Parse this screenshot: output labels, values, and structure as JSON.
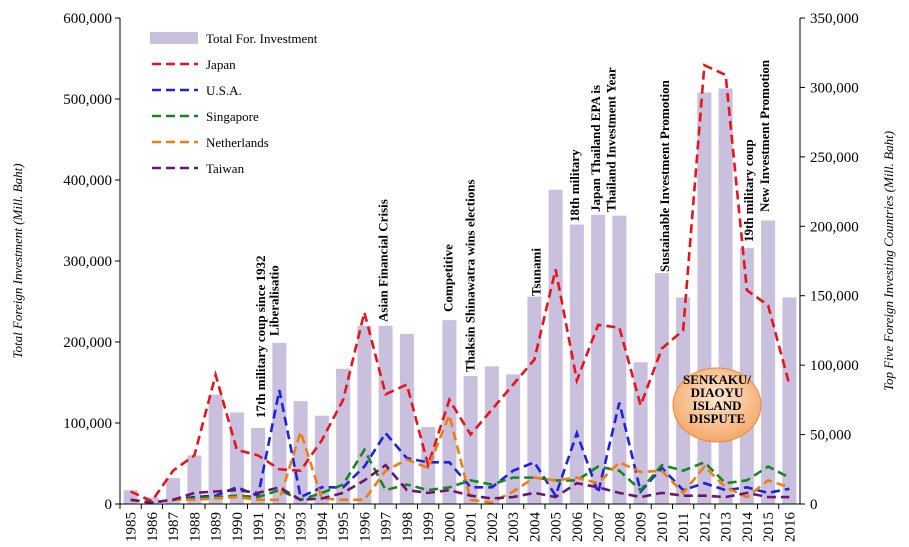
{
  "chart_data": {
    "type": "combo",
    "ylabel": "Total Foreign Investment (Mill. Baht)",
    "y2label": "Top Five Foreign Investing Countries (Mill. Baht)",
    "categories": [
      "1985",
      "1986",
      "1987",
      "1988",
      "1989",
      "1990",
      "1991",
      "1992",
      "1993",
      "1994",
      "1995",
      "1996",
      "1997",
      "1998",
      "1999",
      "2000",
      "2001",
      "2002",
      "2003",
      "2004",
      "2005",
      "2006",
      "2007",
      "2008",
      "2009",
      "2010",
      "2011",
      "2012",
      "2013",
      "2014",
      "2015",
      "2016"
    ],
    "ylim": [
      0,
      600000
    ],
    "yticks": [
      0,
      {
        "value": 100000,
        "label": "100,000"
      },
      {
        "value": 200000,
        "label": "200,000"
      },
      {
        "value": 300000,
        "label": "300,000"
      },
      {
        "value": 400000,
        "label": "400,000"
      },
      {
        "value": 500000,
        "label": "500,000"
      },
      {
        "value": 600000,
        "label": "600,000"
      }
    ],
    "y2lim": [
      0,
      350000
    ],
    "y2ticks": [
      0,
      {
        "value": 50000,
        "label": "50,000"
      },
      {
        "value": 100000,
        "label": "100,000"
      },
      {
        "value": 150000,
        "label": "150,000"
      },
      {
        "value": 200000,
        "label": "200,000"
      },
      {
        "value": 250000,
        "label": "250,000"
      },
      {
        "value": 300000,
        "label": "300,000"
      },
      {
        "value": 350000,
        "label": "350,000"
      }
    ],
    "series": [
      {
        "name": "Total For. Investment",
        "type": "bar",
        "color": "#c9c0dd",
        "axis": "y",
        "values": [
          17000,
          8000,
          32000,
          60000,
          135000,
          113000,
          94000,
          199000,
          127000,
          109000,
          167000,
          220000,
          220000,
          210000,
          95000,
          227000,
          158000,
          170000,
          160000,
          256000,
          388000,
          345000,
          357000,
          356000,
          175000,
          285000,
          255000,
          508000,
          513000,
          316000,
          350000,
          255000
        ]
      },
      {
        "name": "Japan",
        "type": "line",
        "color": "#e8141c",
        "axis": "y2",
        "values": [
          9000,
          2000,
          24000,
          35000,
          93000,
          39000,
          35000,
          25000,
          24000,
          46000,
          75000,
          138000,
          79000,
          86000,
          28000,
          75000,
          50000,
          68000,
          86000,
          104000,
          169000,
          89000,
          129000,
          127000,
          71000,
          112000,
          125000,
          316000,
          309000,
          154000,
          143000,
          86000
        ]
      },
      {
        "name": "U.S.A.",
        "type": "line",
        "color": "#1c22e0",
        "axis": "y2",
        "values": [
          3000,
          1000,
          3000,
          5000,
          6000,
          12000,
          6000,
          82000,
          5000,
          12000,
          12000,
          27000,
          51000,
          33000,
          30000,
          30000,
          12000,
          12000,
          24000,
          30000,
          6000,
          51000,
          8000,
          73000,
          9000,
          26000,
          10000,
          15000,
          10000,
          12000,
          8000,
          11000
        ]
      },
      {
        "name": "Singapore",
        "type": "line",
        "color": "#17861f",
        "axis": "y2",
        "values": [
          3000,
          1000,
          3000,
          4000,
          5000,
          6000,
          5000,
          10000,
          3000,
          8000,
          14000,
          39000,
          10000,
          14000,
          10000,
          12000,
          17000,
          14000,
          19000,
          19000,
          17000,
          17000,
          27000,
          24000,
          10000,
          28000,
          24000,
          30000,
          15000,
          17000,
          27000,
          19000
        ]
      },
      {
        "name": "Netherlands",
        "type": "line",
        "color": "#f07d12",
        "axis": "y2",
        "values": [
          3000,
          1000,
          3000,
          3000,
          4000,
          5000,
          3000,
          3000,
          52000,
          4000,
          3000,
          3000,
          24000,
          32000,
          26000,
          64000,
          3000,
          1000,
          9000,
          19000,
          17000,
          19000,
          15000,
          30000,
          23000,
          24000,
          8000,
          27000,
          12000,
          5000,
          17000,
          12000
        ]
      },
      {
        "name": "Taiwan",
        "type": "line",
        "color": "#6a1670",
        "axis": "y2",
        "values": [
          3000,
          1000,
          3000,
          8000,
          9000,
          10000,
          8000,
          12000,
          3000,
          4000,
          8000,
          17000,
          28000,
          10000,
          8000,
          10000,
          6000,
          4000,
          5000,
          8000,
          5000,
          15000,
          12000,
          8000,
          5000,
          8000,
          6000,
          6000,
          5000,
          8000,
          5000,
          5000
        ]
      }
    ],
    "annotations": [
      {
        "text": "17th military coup since 1932",
        "color": "#000000"
      },
      {
        "text": "Liberalisatio",
        "color": "#e8141c"
      },
      {
        "text": "Asian Financial Crisis",
        "color": "#e8141c"
      },
      {
        "text": "Competitive",
        "color": "#e8141c"
      },
      {
        "text": "Thaksin Shinawatra wins elections",
        "color": "#000000"
      },
      {
        "text": "Tsunami",
        "color": "#000000"
      },
      {
        "text": "18th military",
        "color": "#000000"
      },
      {
        "text": "Japan Thailand EPA is",
        "color": "#000000"
      },
      {
        "text": "Thailand Investment Year",
        "color": "#e8141c"
      },
      {
        "text": "Sustainable Investment Promotion",
        "color": "#e8141c"
      },
      {
        "text": "19th military coup",
        "color": "#000000"
      },
      {
        "text": "New Investment Promotion",
        "color": "#e8141c"
      }
    ],
    "callout": [
      "SENKAKU/",
      "DIAOYU",
      "ISLAND",
      "DISPUTE"
    ]
  }
}
